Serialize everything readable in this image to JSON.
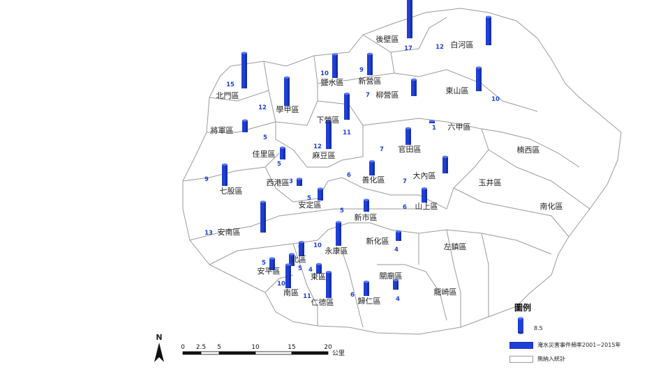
{
  "map": {
    "districts": [
      {
        "name": "後壁區",
        "count": 17
      },
      {
        "name": "白河區",
        "count": 12
      },
      {
        "name": "鹽水區",
        "count": 10
      },
      {
        "name": "新營區",
        "count": 9
      },
      {
        "name": "柳營區",
        "count": 7
      },
      {
        "name": "東山區",
        "count": 10
      },
      {
        "name": "北門區",
        "count": 15
      },
      {
        "name": "學甲區",
        "count": 12
      },
      {
        "name": "下營區",
        "count": 11
      },
      {
        "name": "六甲區",
        "count": 1
      },
      {
        "name": "將軍區",
        "count": 5
      },
      {
        "name": "麻豆區",
        "count": 12
      },
      {
        "name": "官田區",
        "count": 7
      },
      {
        "name": "佳里區",
        "count": 5
      },
      {
        "name": "七股區",
        "count": 9
      },
      {
        "name": "西港區",
        "count": 3
      },
      {
        "name": "善化區",
        "count": 6
      },
      {
        "name": "大內區",
        "count": 7
      },
      {
        "name": "安定區",
        "count": 5
      },
      {
        "name": "新市區",
        "count": 5
      },
      {
        "name": "山上區",
        "count": 6
      },
      {
        "name": "安南區",
        "count": 13
      },
      {
        "name": "永康區",
        "count": 10
      },
      {
        "name": "新化區",
        "count": 4
      },
      {
        "name": "北區",
        "count": 6
      },
      {
        "name": "安平區",
        "count": 5
      },
      {
        "name": "中西區",
        "count": 5
      },
      {
        "name": "東區",
        "count": 4
      },
      {
        "name": "南區",
        "count": 10
      },
      {
        "name": "仁德區",
        "count": 11
      },
      {
        "name": "歸仁區",
        "count": 6
      },
      {
        "name": "關廟區",
        "count": 4
      },
      {
        "name": "龍崎區",
        "count": null
      },
      {
        "name": "左鎮區",
        "count": null
      },
      {
        "name": "玉井區",
        "count": null
      },
      {
        "name": "楠西區",
        "count": null
      },
      {
        "name": "南化區",
        "count": null
      }
    ],
    "bar_color": "#1f3fd6"
  },
  "legend": {
    "title": "圖例",
    "sample_value": "8.5",
    "series_label": "淹水災害事件頻率2001~2015年",
    "no_data_label": "無納入統計"
  },
  "scalebar": {
    "north": "N",
    "ticks": [
      "0",
      "2.5",
      "5",
      "10",
      "15",
      "20"
    ],
    "unit": "公里"
  }
}
